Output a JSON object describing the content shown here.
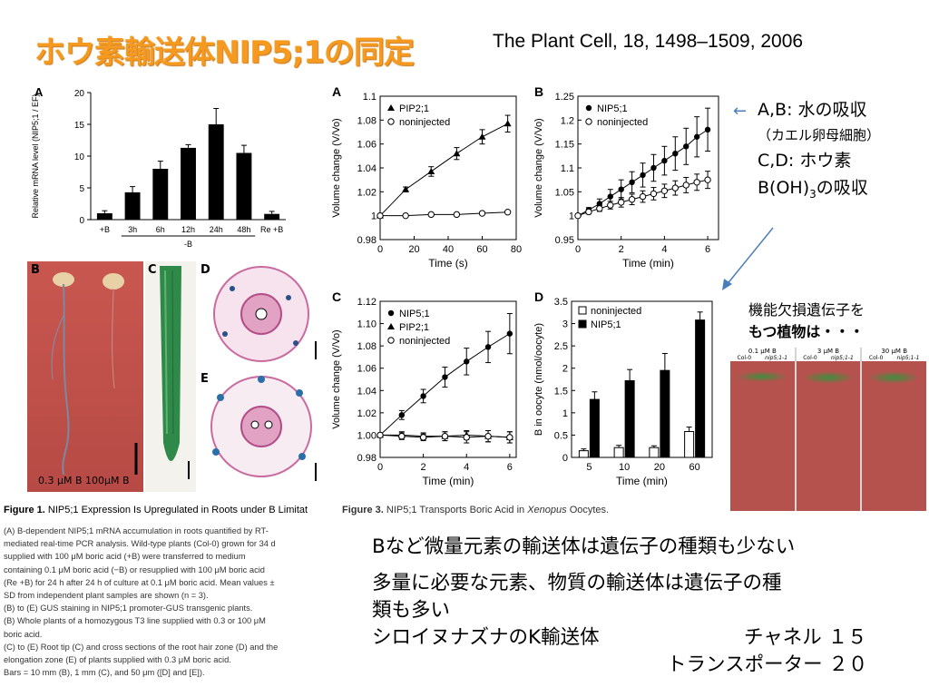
{
  "title": "ホウ素輸送体NIP5;1の同定",
  "citation": "The Plant Cell, 18, 1498–1509,  2006",
  "side_notes": {
    "line1": "A,B:  水の吸収",
    "line2": "（カエル卵母細胞）",
    "line3": "C,D:  ホウ素",
    "line4_pre": "B(OH)",
    "line4_sub": "3",
    "line4_post": "の吸収",
    "mutant_line1": "機能欠損遺伝子を",
    "mutant_line2": "もつ植物は・・・"
  },
  "fig1_caption": {
    "title_bold": "Figure 1.",
    "title_rest": " NIP5;1 Expression Is Upregulated in Roots under B Limitat",
    "lines": [
      "(A) B-dependent NIP5;1 mRNA accumulation in roots quantified by RT-",
      "mediated real-time PCR analysis. Wild-type plants (Col-0) grown for 34 d",
      "supplied with 100 μM boric acid (+B) were transferred to medium",
      "containing 0.1 μM boric acid (−B) or resupplied with 100 μM boric acid",
      "(Re +B) for 24 h after 24 h of culture at 0.1 μM boric acid. Mean values ±",
      "SD from independent plant samples are shown (n = 3).",
      "(B) to (E) GUS staining in NIP5;1 promoter-GUS transgenic plants.",
      "(B) Whole plants of a homozygous T3 line supplied with 0.3 or 100 μM",
      "boric acid.",
      "(C) to (E) Root tip (C) and cross sections of the root hair zone (D) and the",
      "elongation zone (E) of plants supplied with 0.3 μM boric acid.",
      "Bars = 10 mm (B), 1 mm (C), and 50 μm ([D] and [E])."
    ]
  },
  "fig3_caption": {
    "bold": "Figure 3.",
    "pre": " NIP5;1 Transports Boric Acid in ",
    "italic": "Xenopus",
    "post": " Oocytes."
  },
  "bottom_text": {
    "line1": "Bなど微量元素の輸送体は遺伝子の種類も少ない",
    "line2": "多量に必要な元素、物質の輸送体は遺伝子の種",
    "line3": "類も多い",
    "line4_left": "シロイヌナズナのK輸送体",
    "line4_right": "チャネル  １５",
    "line5": "トランスポーター  ２０"
  },
  "photo_labels": {
    "B": "B",
    "C": "C",
    "D": "D",
    "E": "E",
    "b_caption": "0.3 μM B   100μM B",
    "mutant_headers": [
      "0.1 μM B",
      "3 μM B",
      "30 μM B"
    ],
    "mutant_sub": [
      "Col-0",
      "nip5;1-1"
    ]
  },
  "chart_data": [
    {
      "type": "bar",
      "panel": "A",
      "ylabel": "Relative mRNA level (NIP5;1 / EF)",
      "categories": [
        "+B",
        "3h",
        "6h",
        "12h",
        "24h",
        "48h",
        "Re +B"
      ],
      "group_label": "-B",
      "values": [
        1.0,
        4.3,
        8.0,
        11.3,
        15.0,
        10.5,
        0.9
      ],
      "errors": [
        0.4,
        0.9,
        1.2,
        0.5,
        2.5,
        1.2,
        0.4
      ],
      "ylim": [
        0,
        20
      ],
      "yticks": [
        0,
        5,
        10,
        15,
        20
      ]
    },
    {
      "type": "line",
      "panel": "A",
      "xlabel": "Time (s)",
      "ylabel": "Volume change (V/Vo)",
      "xlim": [
        0,
        80
      ],
      "ylim": [
        0.98,
        1.1
      ],
      "xticks": [
        0,
        20,
        40,
        60,
        80
      ],
      "yticks": [
        "0.98",
        "1",
        "1.02",
        "1.04",
        "1.06",
        "1.08",
        "1.1"
      ],
      "legend": [
        "PIP2;1",
        "noninjected"
      ],
      "series": [
        {
          "name": "PIP2;1",
          "marker": "triangle",
          "x": [
            0,
            15,
            30,
            45,
            60,
            75
          ],
          "y": [
            1.0,
            1.022,
            1.037,
            1.052,
            1.066,
            1.077
          ],
          "err": [
            0,
            0.002,
            0.004,
            0.005,
            0.006,
            0.007
          ]
        },
        {
          "name": "noninjected",
          "marker": "open-circle",
          "x": [
            0,
            15,
            30,
            45,
            60,
            75
          ],
          "y": [
            1.0,
            1.0,
            1.001,
            1.001,
            1.002,
            1.003
          ],
          "err": [
            0,
            0,
            0,
            0,
            0,
            0
          ]
        }
      ]
    },
    {
      "type": "line",
      "panel": "B",
      "xlabel": "Time (min)",
      "ylabel": "Volume change (V/Vo)",
      "xlim": [
        0,
        6.5
      ],
      "ylim": [
        0.95,
        1.25
      ],
      "xticks": [
        0,
        2,
        4,
        6
      ],
      "yticks": [
        "0.95",
        "1",
        "1.05",
        "1.1",
        "1.15",
        "1.2",
        "1.25"
      ],
      "legend": [
        "NIP5;1",
        "noninjected"
      ],
      "series": [
        {
          "name": "NIP5;1",
          "marker": "filled-circle",
          "x": [
            0,
            0.5,
            1,
            1.5,
            2,
            2.5,
            3,
            3.5,
            4,
            4.5,
            5,
            5.5,
            6
          ],
          "y": [
            1.0,
            1.012,
            1.025,
            1.04,
            1.055,
            1.07,
            1.085,
            1.1,
            1.115,
            1.13,
            1.145,
            1.165,
            1.18
          ],
          "err": [
            0,
            0.005,
            0.01,
            0.015,
            0.02,
            0.022,
            0.025,
            0.028,
            0.03,
            0.035,
            0.038,
            0.042,
            0.045
          ]
        },
        {
          "name": "noninjected",
          "marker": "open-circle",
          "x": [
            0,
            0.5,
            1,
            1.5,
            2,
            2.5,
            3,
            3.5,
            4,
            4.5,
            5,
            5.5,
            6
          ],
          "y": [
            1.0,
            1.008,
            1.015,
            1.022,
            1.028,
            1.034,
            1.04,
            1.046,
            1.052,
            1.058,
            1.064,
            1.07,
            1.075
          ],
          "err": [
            0,
            0.004,
            0.006,
            0.008,
            0.01,
            0.011,
            0.012,
            0.013,
            0.014,
            0.015,
            0.016,
            0.017,
            0.018
          ]
        }
      ]
    },
    {
      "type": "line",
      "panel": "C",
      "xlabel": "Time (min)",
      "ylabel": "Volume change (V/Vo)",
      "xlim": [
        0,
        6.3
      ],
      "ylim": [
        0.98,
        1.12
      ],
      "xticks": [
        0,
        2,
        4,
        6
      ],
      "yticks": [
        "0.98",
        "1.00",
        "1.02",
        "1.04",
        "1.06",
        "1.08",
        "1.10",
        "1.12"
      ],
      "legend": [
        "NIP5;1",
        "PIP2;1",
        "noninjected"
      ],
      "series": [
        {
          "name": "NIP5;1",
          "marker": "filled-circle",
          "x": [
            0,
            1,
            2,
            3,
            4,
            5,
            6
          ],
          "y": [
            1.0,
            1.018,
            1.035,
            1.052,
            1.066,
            1.079,
            1.091
          ],
          "err": [
            0,
            0.004,
            0.006,
            0.009,
            0.012,
            0.014,
            0.018
          ]
        },
        {
          "name": "PIP2;1",
          "marker": "triangle",
          "x": [
            0,
            1,
            2,
            3,
            4,
            5,
            6
          ],
          "y": [
            1.0,
            1.0,
            0.999,
            0.999,
            1.0,
            0.999,
            0.998
          ],
          "err": [
            0,
            0.003,
            0.003,
            0.004,
            0.004,
            0.005,
            0.005
          ]
        },
        {
          "name": "noninjected",
          "marker": "open-circle",
          "x": [
            0,
            1,
            2,
            3,
            4,
            5,
            6
          ],
          "y": [
            1.0,
            0.999,
            0.998,
            0.999,
            0.998,
            0.999,
            0.998
          ],
          "err": [
            0,
            0.003,
            0.003,
            0.004,
            0.005,
            0.005,
            0.005
          ]
        }
      ]
    },
    {
      "type": "bar",
      "panel": "D",
      "xlabel": "Time (min)",
      "ylabel": "B in oocyte (nmol/oocyte)",
      "categories": [
        "5",
        "10",
        "20",
        "60"
      ],
      "ylim": [
        0,
        3.5
      ],
      "yticks": [
        "0",
        "0.5",
        "1",
        "1.5",
        "2",
        "2.5",
        "3",
        "3.5"
      ],
      "legend": [
        "noninjected",
        "NIP5;1"
      ],
      "series": [
        {
          "name": "noninjected",
          "fill": "white",
          "values": [
            0.15,
            0.22,
            0.22,
            0.58
          ],
          "err": [
            0.04,
            0.05,
            0.04,
            0.1
          ]
        },
        {
          "name": "NIP5;1",
          "fill": "black",
          "values": [
            1.3,
            1.72,
            1.95,
            3.08
          ],
          "err": [
            0.17,
            0.25,
            0.38,
            0.18
          ]
        }
      ]
    }
  ]
}
